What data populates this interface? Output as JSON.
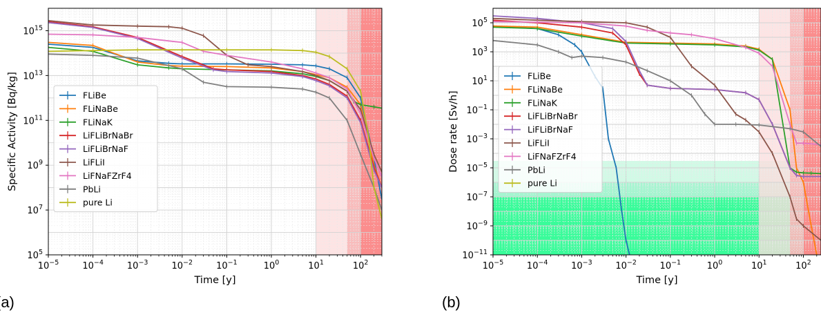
{
  "panels": {
    "a": {
      "label": "(a)"
    },
    "b": {
      "label": "(b)"
    }
  },
  "colors": {
    "FLiBe": "#1f77b4",
    "FLiNaBe": "#ff7f0e",
    "FLiNaK": "#2ca02c",
    "LiFLiBrNaBr": "#d62728",
    "LiFLiBrNaF": "#9467bd",
    "LiFLiI": "#8c564b",
    "LiFNaFZrF4": "#e377c2",
    "PbLi": "#7f7f7f",
    "pure Li": "#bcbd22",
    "shade_light_red": "#fcdcdc",
    "shade_mid_red": "#f7b1b1",
    "shade_dark_red": "#fb8080",
    "shade_green_light": "#d1fae6",
    "shade_green_mid": "#a5f5d0",
    "shade_green_dark": "#39fc9a"
  },
  "chart_data": [
    {
      "id": "a",
      "type": "line",
      "title": "",
      "xlabel": "Time [y]",
      "ylabel": "Specific Activity [Bq/kg]",
      "xscale": "log",
      "yscale": "log",
      "xlim": [
        1e-05,
        300
      ],
      "ylim": [
        100000.0,
        1e+16
      ],
      "xticks": [
        {
          "v": 1e-05,
          "label": "10^-5"
        },
        {
          "v": 0.0001,
          "label": "10^-4"
        },
        {
          "v": 0.001,
          "label": "10^-3"
        },
        {
          "v": 0.01,
          "label": "10^-2"
        },
        {
          "v": 0.1,
          "label": "10^-1"
        },
        {
          "v": 1,
          "label": "10^0"
        },
        {
          "v": 10,
          "label": "10^1"
        },
        {
          "v": 100,
          "label": "10^2"
        }
      ],
      "yticks": [
        {
          "v": 100000.0,
          "label": "10^5"
        },
        {
          "v": 10000000.0,
          "label": "10^7"
        },
        {
          "v": 1000000000.0,
          "label": "10^9"
        },
        {
          "v": 100000000000.0,
          "label": "10^11"
        },
        {
          "v": 10000000000000.0,
          "label": "10^13"
        },
        {
          "v": 1000000000000000.0,
          "label": "10^15"
        }
      ],
      "grid": true,
      "legend": "center-left",
      "shaded_regions": [
        {
          "x": [
            10,
            300
          ],
          "color": "#fcdcdc"
        },
        {
          "x": [
            50,
            300
          ],
          "color": "#f7b1b1"
        },
        {
          "x": [
            100,
            300
          ],
          "color": "#fb8080"
        }
      ],
      "series": [
        {
          "name": "FLiBe",
          "x": [
            1e-05,
            0.0001,
            0.001,
            0.005,
            0.01,
            0.1,
            1,
            5,
            10,
            20,
            50,
            100,
            200,
            300
          ],
          "y": [
            250000000000000.0,
            180000000000000.0,
            45000000000000.0,
            35000000000000.0,
            33000000000000.0,
            33000000000000.0,
            32000000000000.0,
            30000000000000.0,
            27000000000000.0,
            20000000000000.0,
            8000000000000.0,
            1000000000000.0,
            2000000000.0,
            30000000.0
          ]
        },
        {
          "name": "FLiNaBe",
          "x": [
            1e-05,
            0.0001,
            0.001,
            0.005,
            0.01,
            0.1,
            1,
            5,
            10,
            20,
            50,
            100,
            200,
            300
          ],
          "y": [
            300000000000000.0,
            220000000000000.0,
            40000000000000.0,
            28000000000000.0,
            26000000000000.0,
            25000000000000.0,
            22000000000000.0,
            15000000000000.0,
            11000000000000.0,
            8000000000000.0,
            3000000000000.0,
            500000000000.0,
            1000000000.0,
            100000000.0
          ]
        },
        {
          "name": "FLiNaK",
          "x": [
            1e-05,
            0.0001,
            0.001,
            0.005,
            0.01,
            0.1,
            1,
            5,
            10,
            20,
            50,
            70,
            100,
            200,
            300
          ],
          "y": [
            180000000000000.0,
            120000000000000.0,
            30000000000000.0,
            22000000000000.0,
            20000000000000.0,
            18000000000000.0,
            16000000000000.0,
            12000000000000.0,
            9000000000000.0,
            6000000000000.0,
            2000000000000.0,
            700000000000.0,
            500000000000.0,
            400000000000.0,
            350000000000.0
          ]
        },
        {
          "name": "LiFLiBrNaBr",
          "x": [
            1e-05,
            0.0001,
            0.001,
            0.01,
            0.05,
            0.1,
            1,
            5,
            10,
            20,
            50,
            100,
            200,
            300
          ],
          "y": [
            2500000000000000.0,
            1500000000000000.0,
            500000000000000.0,
            70000000000000.0,
            20000000000000.0,
            18000000000000.0,
            15000000000000.0,
            10000000000000.0,
            7000000000000.0,
            4000000000000.0,
            1200000000000.0,
            100000000000.0,
            800000000.0,
            100000000.0
          ]
        },
        {
          "name": "LiFLiBrNaF",
          "x": [
            1e-05,
            0.0001,
            0.001,
            0.01,
            0.05,
            0.1,
            1,
            5,
            10,
            20,
            50,
            100,
            200,
            300
          ],
          "y": [
            2300000000000000.0,
            1400000000000000.0,
            450000000000000.0,
            60000000000000.0,
            18000000000000.0,
            15000000000000.0,
            13000000000000.0,
            9000000000000.0,
            6000000000000.0,
            3500000000000.0,
            1000000000000.0,
            80000000000.0,
            600000000.0,
            100000000.0
          ]
        },
        {
          "name": "LiFLiI",
          "x": [
            1e-05,
            0.0001,
            0.001,
            0.005,
            0.01,
            0.03,
            0.1,
            0.3,
            1,
            5,
            10,
            20,
            50,
            100,
            200,
            300
          ],
          "y": [
            2800000000000000.0,
            1800000000000000.0,
            1600000000000000.0,
            1500000000000000.0,
            1300000000000000.0,
            600000000000000.0,
            80000000000000.0,
            30000000000000.0,
            25000000000000.0,
            15000000000000.0,
            10000000000000.0,
            6000000000000.0,
            2000000000000.0,
            300000000000.0,
            3000000000.0,
            500000000.0
          ]
        },
        {
          "name": "LiFNaFZrF4",
          "x": [
            1e-05,
            0.0001,
            0.001,
            0.01,
            0.03,
            0.1,
            1,
            5,
            10,
            20,
            50,
            100,
            200,
            300
          ],
          "y": [
            700000000000000.0,
            650000000000000.0,
            500000000000000.0,
            300000000000000.0,
            120000000000000.0,
            80000000000000.0,
            40000000000000.0,
            20000000000000.0,
            13000000000000.0,
            8000000000000.0,
            2500000000000.0,
            200000000000.0,
            2000000000.0,
            300000000.0
          ]
        },
        {
          "name": "PbLi",
          "x": [
            1e-05,
            0.0001,
            0.001,
            0.01,
            0.03,
            0.1,
            1,
            5,
            10,
            20,
            50,
            100,
            200,
            300
          ],
          "y": [
            90000000000000.0,
            80000000000000.0,
            60000000000000.0,
            20000000000000.0,
            5000000000000.0,
            3200000000000.0,
            3000000000000.0,
            2500000000000.0,
            1800000000000.0,
            1000000000000.0,
            100000000000.0,
            3000000000.0,
            100000000.0,
            10000000.0
          ]
        },
        {
          "name": "pure Li",
          "x": [
            1e-05,
            0.0001,
            0.001,
            0.01,
            0.1,
            1,
            5,
            10,
            20,
            50,
            100,
            150,
            200,
            300
          ],
          "y": [
            120000000000000.0,
            130000000000000.0,
            140000000000000.0,
            140000000000000.0,
            140000000000000.0,
            140000000000000.0,
            130000000000000.0,
            110000000000000.0,
            70000000000000.0,
            20000000000000.0,
            2000000000000.0,
            20000000000.0,
            100000000.0,
            4000000.0
          ]
        }
      ]
    },
    {
      "id": "b",
      "type": "line",
      "title": "",
      "xlabel": "Time [y]",
      "ylabel": "Dose rate [Sv/h]",
      "xscale": "log",
      "yscale": "log",
      "xlim": [
        1e-05,
        250
      ],
      "ylim": [
        1e-11,
        1000000.0
      ],
      "xticks": [
        {
          "v": 1e-05,
          "label": "10^-5"
        },
        {
          "v": 0.0001,
          "label": "10^-4"
        },
        {
          "v": 0.001,
          "label": "10^-3"
        },
        {
          "v": 0.01,
          "label": "10^-2"
        },
        {
          "v": 0.1,
          "label": "10^-1"
        },
        {
          "v": 1,
          "label": "10^0"
        },
        {
          "v": 10,
          "label": "10^1"
        },
        {
          "v": 100,
          "label": "10^2"
        }
      ],
      "yticks": [
        {
          "v": 1e-11,
          "label": "10^-11"
        },
        {
          "v": 1e-09,
          "label": "10^-9"
        },
        {
          "v": 1e-07,
          "label": "10^-7"
        },
        {
          "v": 1e-05,
          "label": "10^-5"
        },
        {
          "v": 0.001,
          "label": "10^-3"
        },
        {
          "v": 0.1,
          "label": "10^-1"
        },
        {
          "v": 10,
          "label": "10^1"
        },
        {
          "v": 1000,
          "label": "10^3"
        },
        {
          "v": 100000,
          "label": "10^5"
        }
      ],
      "grid": true,
      "legend": "center-left",
      "shaded_regions": [
        {
          "x": [
            10,
            250
          ],
          "color": "#fcdcdc"
        },
        {
          "x": [
            50,
            250
          ],
          "color": "#f7b1b1"
        },
        {
          "x": [
            100,
            250
          ],
          "color": "#fb8080"
        }
      ],
      "shaded_bands": [
        {
          "y": [
            1e-11,
            3e-05
          ],
          "color": "#d1fae6"
        },
        {
          "y": [
            1e-11,
            1e-06
          ],
          "color": "#a5f5d0"
        },
        {
          "y": [
            1e-11,
            1e-07
          ],
          "color": "#39fc9a"
        }
      ],
      "series": [
        {
          "name": "FLiBe",
          "x": [
            1e-05,
            0.0001,
            0.0003,
            0.0007,
            0.001,
            0.002,
            0.003,
            0.004,
            0.006,
            0.008,
            0.01,
            0.012
          ],
          "y": [
            60000,
            40000,
            15000,
            3000,
            1000,
            20,
            3,
            0.001,
            1e-05,
            1e-08,
            1e-10,
            1e-11
          ]
        },
        {
          "name": "FLiNaBe",
          "x": [
            1e-05,
            0.0001,
            0.001,
            0.01,
            0.1,
            1,
            5,
            10,
            20,
            50,
            70,
            100,
            150,
            200
          ],
          "y": [
            60000,
            50000,
            15000,
            4500,
            4000,
            3500,
            2500,
            1500,
            300,
            0.1,
            1e-05,
            1e-06,
            1e-09,
            1e-11
          ]
        },
        {
          "name": "FLiNaK",
          "x": [
            1e-05,
            0.0001,
            0.001,
            0.01,
            0.1,
            1,
            5,
            10,
            20,
            50,
            70,
            100,
            150,
            250
          ],
          "y": [
            50000,
            40000,
            12000,
            4000,
            3500,
            3000,
            2200,
            1300,
            300,
            1e-05,
            5e-06,
            4.5e-06,
            4.3e-06,
            4e-06
          ]
        },
        {
          "name": "LiFLiBrNaBr",
          "x": [
            1e-05,
            0.0001,
            0.001,
            0.005,
            0.01,
            0.02,
            0.03,
            0.1,
            1,
            5,
            10,
            20,
            50,
            70,
            100,
            250
          ],
          "y": [
            150000,
            100000,
            50000,
            20000,
            3000,
            30,
            5,
            3,
            2.5,
            1.5,
            0.5,
            0.01,
            1e-05,
            3e-06,
            2.5e-06,
            2.5e-06
          ]
        },
        {
          "name": "LiFLiBrNaF",
          "x": [
            1e-05,
            0.0001,
            0.001,
            0.005,
            0.01,
            0.02,
            0.03,
            0.1,
            1,
            5,
            10,
            20,
            50,
            70,
            100,
            250
          ],
          "y": [
            300000,
            200000,
            100000,
            40000,
            5000,
            50,
            5,
            3,
            2.5,
            1.5,
            0.5,
            0.01,
            1e-05,
            3e-06,
            2.5e-06,
            2.5e-06
          ]
        },
        {
          "name": "LiFLiI",
          "x": [
            1e-05,
            0.0001,
            0.001,
            0.01,
            0.03,
            0.1,
            0.3,
            1,
            3,
            5,
            10,
            20,
            50,
            70,
            100,
            250
          ],
          "y": [
            200000,
            150000,
            120000,
            100000,
            50000,
            10000,
            100,
            5,
            0.05,
            0.02,
            0.003,
            0.0001,
            1e-07,
            3e-09,
            1e-09,
            1e-10
          ]
        },
        {
          "name": "LiFNaFZrF4",
          "x": [
            1e-05,
            0.0001,
            0.001,
            0.01,
            0.03,
            0.1,
            0.3,
            1,
            5,
            10,
            20,
            50,
            70,
            100,
            250
          ],
          "y": [
            120000,
            110000,
            100000,
            60000,
            30000,
            20000,
            15000,
            8000,
            2000,
            800,
            100,
            0.01,
            0.0005,
            0.0005,
            0.0004
          ]
        },
        {
          "name": "PbLi",
          "x": [
            1e-05,
            0.0001,
            0.0003,
            0.0006,
            0.001,
            0.003,
            0.01,
            0.03,
            0.1,
            0.3,
            0.6,
            1,
            3,
            10,
            50,
            100,
            250
          ],
          "y": [
            6000,
            3000,
            1000,
            400,
            500,
            400,
            200,
            50,
            10,
            1,
            0.05,
            0.01,
            0.01,
            0.009,
            0.005,
            0.003,
            0.0003
          ]
        },
        {
          "name": "pure Li",
          "x": [],
          "y": []
        }
      ]
    }
  ]
}
